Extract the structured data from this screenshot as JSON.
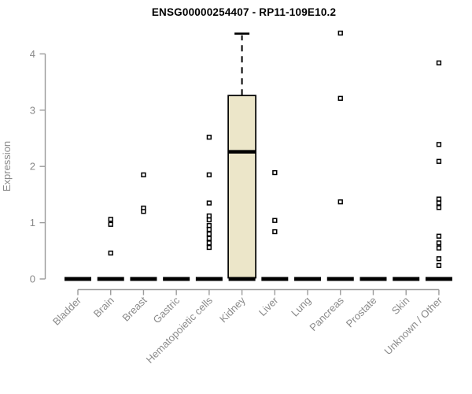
{
  "chart_data": {
    "type": "boxplot",
    "title": "ENSG00000254407 - RP11-109E10.2",
    "ylabel": "Expression",
    "xlabel": "",
    "ylim": [
      0,
      4.4
    ],
    "yticks": [
      0,
      1,
      2,
      3,
      4
    ],
    "grid": false,
    "legend": "none",
    "box_fill": "#ECE6C9",
    "box_stroke": "#000000",
    "axis_color": "#9b9b9b",
    "text_color": "#8a8a8a",
    "categories": [
      "Bladder",
      "Brain",
      "Breast",
      "Gastric",
      "Hematopoietic cells",
      "Kidney",
      "Liver",
      "Lung",
      "Pancreas",
      "Prostate",
      "Skin",
      "Unknown / Other"
    ],
    "boxes": [
      {
        "category": "Bladder",
        "median": 0,
        "q1": 0,
        "q3": 0,
        "whisker_low": 0,
        "whisker_high": 0,
        "outliers": []
      },
      {
        "category": "Brain",
        "median": 0,
        "q1": 0,
        "q3": 0,
        "whisker_low": 0,
        "whisker_high": 0,
        "outliers": [
          1.06,
          0.97,
          0.46
        ]
      },
      {
        "category": "Breast",
        "median": 0,
        "q1": 0,
        "q3": 0,
        "whisker_low": 0,
        "whisker_high": 0,
        "outliers": [
          1.85,
          1.26,
          1.2
        ]
      },
      {
        "category": "Gastric",
        "median": 0,
        "q1": 0,
        "q3": 0,
        "whisker_low": 0,
        "whisker_high": 0,
        "outliers": []
      },
      {
        "category": "Hematopoietic cells",
        "median": 0,
        "q1": 0,
        "q3": 0,
        "whisker_low": 0,
        "whisker_high": 0,
        "outliers": [
          2.52,
          1.85,
          1.35,
          1.12,
          1.05,
          0.95,
          0.88,
          0.8,
          0.72,
          0.64,
          0.56
        ]
      },
      {
        "category": "Kidney",
        "median": 2.26,
        "q1": 0.02,
        "q3": 3.26,
        "whisker_low": 0,
        "whisker_high": 4.36,
        "outliers": []
      },
      {
        "category": "Liver",
        "median": 0,
        "q1": 0,
        "q3": 0,
        "whisker_low": 0,
        "whisker_high": 0,
        "outliers": [
          1.89,
          1.04,
          0.84
        ]
      },
      {
        "category": "Lung",
        "median": 0,
        "q1": 0,
        "q3": 0,
        "whisker_low": 0,
        "whisker_high": 0,
        "outliers": []
      },
      {
        "category": "Pancreas",
        "median": 0,
        "q1": 0,
        "q3": 0,
        "whisker_low": 0,
        "whisker_high": 0,
        "outliers": [
          4.37,
          3.21,
          1.37
        ]
      },
      {
        "category": "Prostate",
        "median": 0,
        "q1": 0,
        "q3": 0,
        "whisker_low": 0,
        "whisker_high": 0,
        "outliers": []
      },
      {
        "category": "Skin",
        "median": 0,
        "q1": 0,
        "q3": 0,
        "whisker_low": 0,
        "whisker_high": 0,
        "outliers": []
      },
      {
        "category": "Unknown / Other",
        "median": 0,
        "q1": 0,
        "q3": 0,
        "whisker_low": 0,
        "whisker_high": 0,
        "outliers": [
          3.84,
          2.39,
          2.09,
          1.42,
          1.35,
          1.27,
          0.76,
          0.64,
          0.55,
          0.36,
          0.24
        ]
      }
    ]
  }
}
